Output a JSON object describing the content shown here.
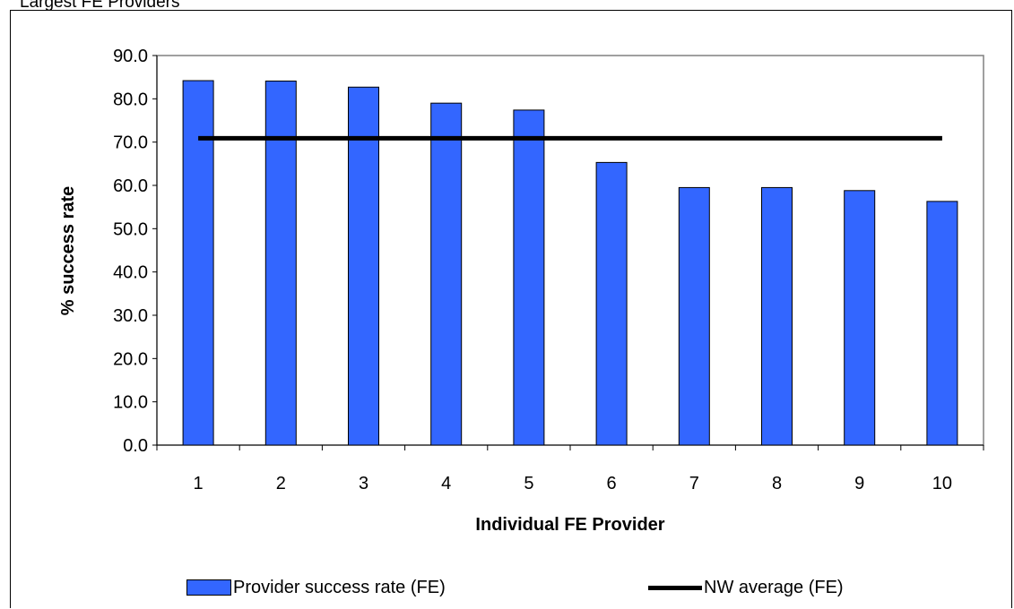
{
  "header": {
    "title": "Largest FE Providers"
  },
  "chart_data": {
    "type": "bar",
    "categories": [
      "1",
      "2",
      "3",
      "4",
      "5",
      "6",
      "7",
      "8",
      "9",
      "10"
    ],
    "series": [
      {
        "name": "Provider success rate (FE)",
        "type": "bar",
        "color": "#3366FF",
        "values": [
          84.2,
          84.1,
          82.7,
          79.0,
          77.4,
          65.3,
          59.5,
          59.5,
          58.8,
          56.3
        ]
      },
      {
        "name": "NW average (FE)",
        "type": "line",
        "color": "#000000",
        "values": [
          70.9,
          70.9,
          70.9,
          70.9,
          70.9,
          70.9,
          70.9,
          70.9,
          70.9,
          70.9
        ]
      }
    ],
    "yticks": [
      "0.0",
      "10.0",
      "20.0",
      "30.0",
      "40.0",
      "50.0",
      "60.0",
      "70.0",
      "80.0",
      "90.0"
    ],
    "xlabel": "Individual FE Provider",
    "ylabel": "% success rate",
    "ylim": [
      0,
      90
    ],
    "grid": false,
    "legend_position": "bottom"
  },
  "legend": {
    "bar_label": "Provider success rate (FE)",
    "line_label": "NW average (FE)"
  }
}
